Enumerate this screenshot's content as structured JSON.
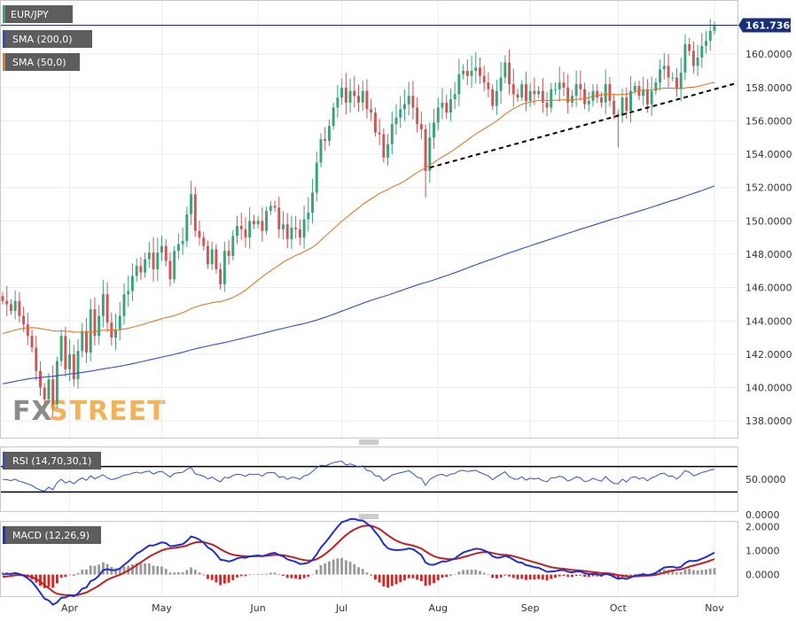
{
  "chart_data": [
    {
      "panel": "price",
      "type": "candlestick",
      "title": "EUR/JPY",
      "ylim": [
        137.0,
        163.2
      ],
      "y_ticks": [
        "138.0000",
        "140.0000",
        "142.0000",
        "144.0000",
        "146.0000",
        "148.0000",
        "150.0000",
        "152.0000",
        "154.0000",
        "156.0000",
        "158.0000",
        "160.0000"
      ],
      "x_ticks": [
        {
          "label": "Apr",
          "date": "2024-04-01"
        },
        {
          "label": "May",
          "date": "2024-05-01"
        },
        {
          "label": "Jun",
          "date": "2024-06-03"
        },
        {
          "label": "Jul",
          "date": "2024-07-01"
        },
        {
          "label": "Aug",
          "date": "2024-08-01"
        },
        {
          "label": "Sep",
          "date": "2024-09-02"
        },
        {
          "label": "Oct",
          "date": "2024-10-01"
        },
        {
          "label": "Nov",
          "date": "2024-11-01"
        }
      ],
      "last_price": "161.7360",
      "last_value": 161.736,
      "legend": [
        "SMA (200,0)",
        "SMA (50,0)"
      ],
      "colors": {
        "up": "#39a37a",
        "down": "#d05555",
        "sma200": "#2f4fcf",
        "sma50": "#e0782a",
        "last_line": "#1a2f7a",
        "trendline": "#000000"
      },
      "closes": [
        145.2,
        145.0,
        144.6,
        145.2,
        144.3,
        143.8,
        143.1,
        142.4,
        141.0,
        140.0,
        139.3,
        140.5,
        139.0,
        141.6,
        143.1,
        141.1,
        142.0,
        140.5,
        142.2,
        143.4,
        142.1,
        144.7,
        143.1,
        144.3,
        145.6,
        143.9,
        143.0,
        143.5,
        144.3,
        145.6,
        145.8,
        146.7,
        147.3,
        146.9,
        147.7,
        148.1,
        147.1,
        148.1,
        148.5,
        147.6,
        146.5,
        148.2,
        148.6,
        148.8,
        150.4,
        151.6,
        149.4,
        149.0,
        148.5,
        147.4,
        148.3,
        147.1,
        146.2,
        148.2,
        147.9,
        149.1,
        149.7,
        149.5,
        149.0,
        150.0,
        149.8,
        150.0,
        149.4,
        150.6,
        150.9,
        150.8,
        149.5,
        149.8,
        148.9,
        149.6,
        149.5,
        149.0,
        150.1,
        150.5,
        151.7,
        153.5,
        154.9,
        154.8,
        155.7,
        156.8,
        157.4,
        158.0,
        157.1,
        157.8,
        157.5,
        157.1,
        157.8,
        156.7,
        156.5,
        155.3,
        155.2,
        153.8,
        154.6,
        155.8,
        156.2,
        156.7,
        157.0,
        157.5,
        156.8,
        155.8,
        155.5,
        153.0,
        155.0,
        155.9,
        156.8,
        157.1,
        156.5,
        157.3,
        157.6,
        158.8,
        159.0,
        158.7,
        159.0,
        159.2,
        158.7,
        158.3,
        157.9,
        156.9,
        157.8,
        158.6,
        159.5,
        158.2,
        157.6,
        157.4,
        158.2,
        157.2,
        157.8,
        157.6,
        157.8,
        157.1,
        156.8,
        157.9,
        157.9,
        158.3,
        158.0,
        157.1,
        157.5,
        158.2,
        157.9,
        157.0,
        157.2,
        157.8,
        157.4,
        157.1,
        158.2,
        157.2,
        156.4,
        156.3,
        157.4,
        156.6,
        157.8,
        158.1,
        157.5,
        157.9,
        157.0,
        157.8,
        158.3,
        159.1,
        159.3,
        158.6,
        158.6,
        157.9,
        158.9,
        160.6,
        160.2,
        159.3,
        159.8,
        160.5,
        160.8,
        161.4,
        161.7
      ],
      "sma50_end": 158.3,
      "sma200_end": 152.1,
      "trendline": [
        {
          "date": "2024-07-30",
          "value": 153.2
        },
        {
          "date": "2024-11-06",
          "value": 157.9
        }
      ]
    },
    {
      "panel": "rsi",
      "type": "line",
      "legend": "RSI (14,70,30,1)",
      "ylim": [
        0,
        100
      ],
      "y_ticks": [
        "50.0000",
        "0.0000"
      ],
      "levels": [
        70,
        30
      ],
      "color": "#3050d0"
    },
    {
      "panel": "macd",
      "type": "line+bar",
      "legend": "MACD (12,26,9)",
      "ylim": [
        -0.9,
        2.2
      ],
      "y_ticks": [
        "2.0000",
        "1.0000",
        "0.0000"
      ],
      "colors": {
        "macd": "#2030d0",
        "signal": "#c02020",
        "hist_pos": "#999999",
        "hist_neg": "#dd2222"
      }
    }
  ]
}
